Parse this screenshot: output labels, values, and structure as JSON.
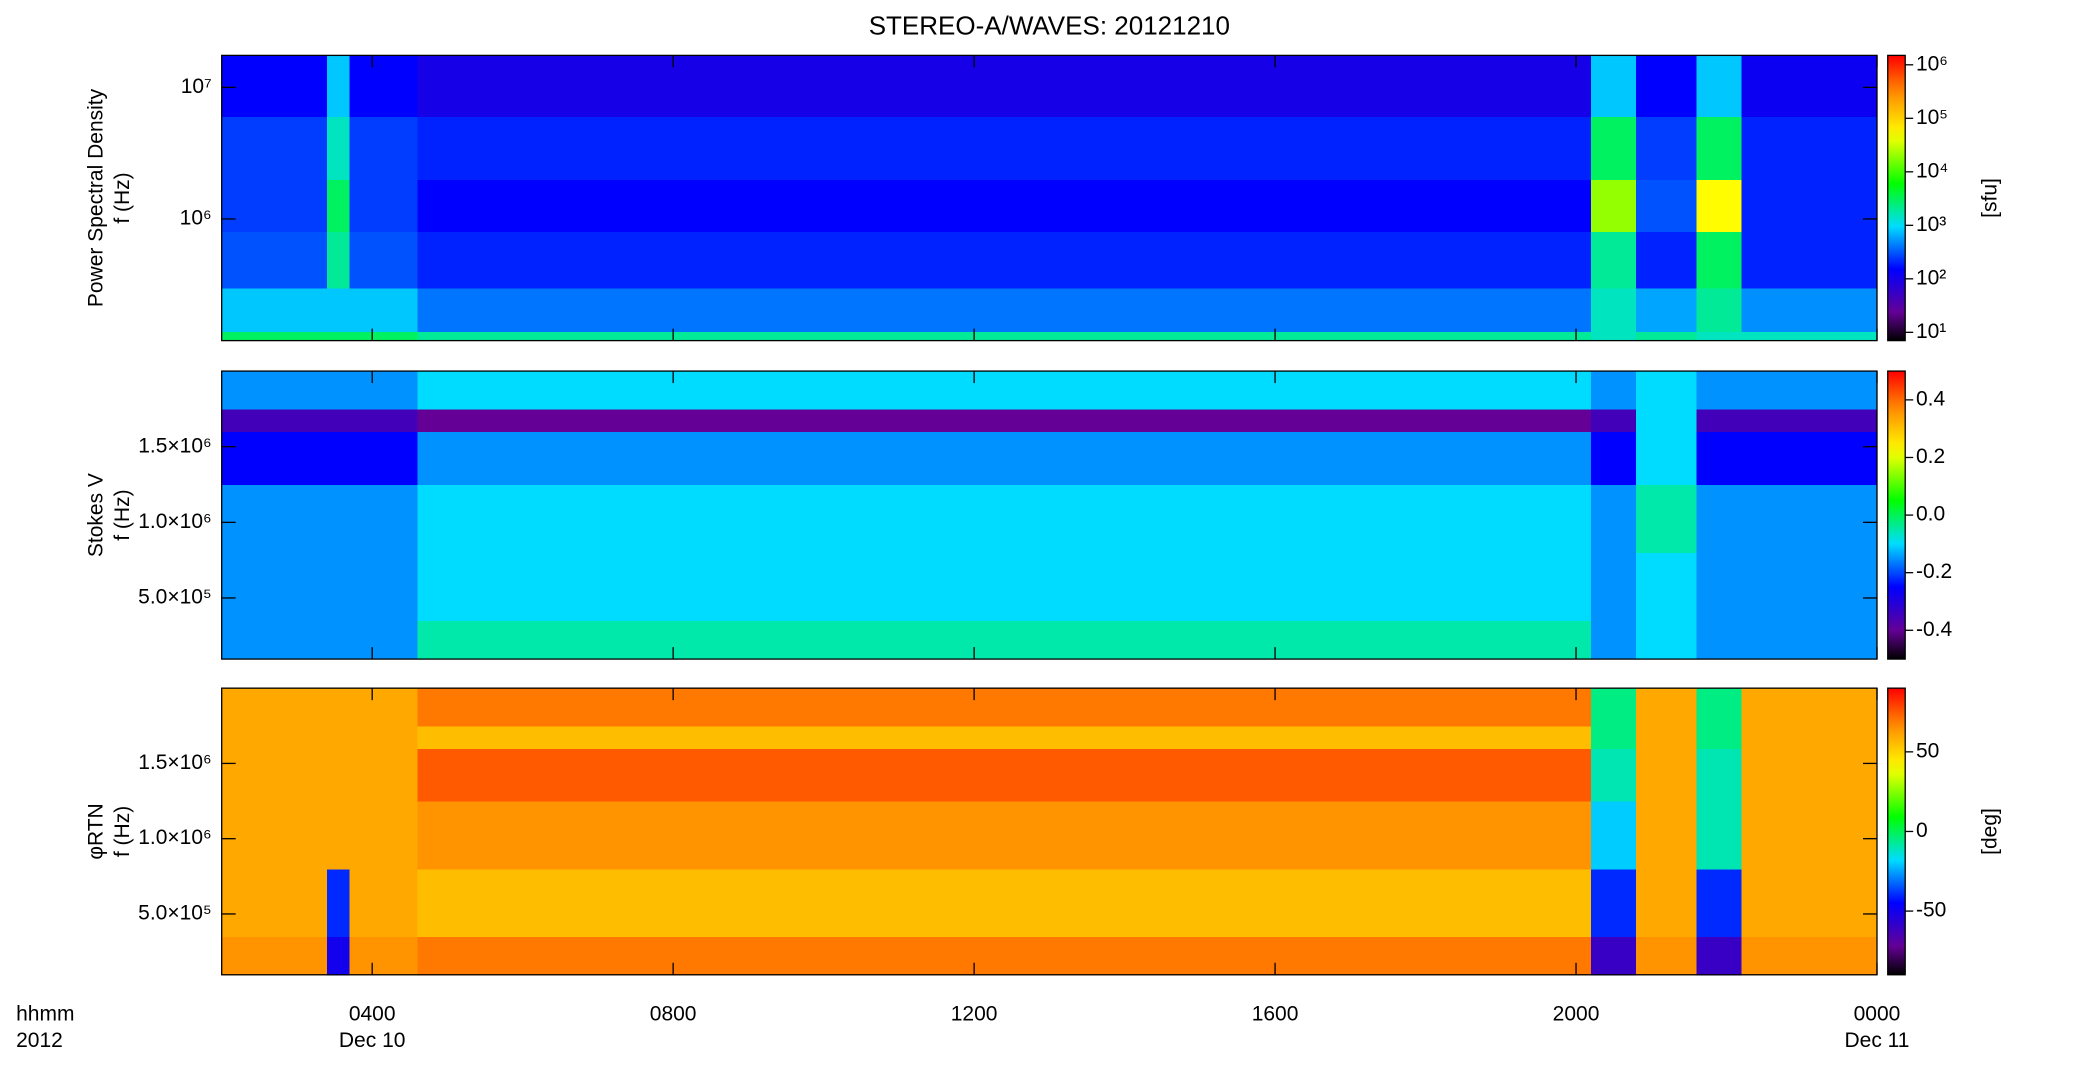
{
  "chart_data": [
    {
      "type": "heatmap",
      "title": "STEREO-A/WAVES: 20121210",
      "ylabel": [
        "Power Spectral Density",
        "f (Hz)"
      ],
      "yscale": "log",
      "ylim": [
        119000,
        17500000
      ],
      "yticks": [
        {
          "value": 1000000,
          "label": "10⁶"
        },
        {
          "value": 10000000,
          "label": "10⁷"
        }
      ],
      "colormap": "rainbow",
      "cscale": "log",
      "clim": [
        7,
        1500000
      ],
      "clabel": "[sfu]",
      "cticks": [
        {
          "value": 10,
          "label": "10¹"
        },
        {
          "value": 100,
          "label": "10²"
        },
        {
          "value": 1000,
          "label": "10³"
        },
        {
          "value": 10000,
          "label": "10⁴"
        },
        {
          "value": 100000,
          "label": "10⁵"
        },
        {
          "value": 1000000,
          "label": "10⁶"
        }
      ],
      "x_edges": [
        2,
        3.4,
        3.7,
        4.6,
        19,
        20.2,
        20.8,
        21.6,
        22.2,
        24
      ],
      "y_edges": [
        119000,
        140000,
        300000,
        800000,
        2000000,
        6000000,
        17500000
      ],
      "z": [
        [
          3000,
          3000,
          3000,
          2000,
          2000,
          1500,
          2000,
          1500,
          1500
        ],
        [
          800,
          800,
          800,
          400,
          400,
          1500,
          600,
          2000,
          500
        ],
        [
          300,
          2000,
          300,
          200,
          200,
          2000,
          200,
          3000,
          200
        ],
        [
          250,
          3000,
          250,
          150,
          150,
          20000,
          300,
          50000,
          200
        ],
        [
          250,
          1500,
          250,
          200,
          200,
          3000,
          250,
          3000,
          200
        ],
        [
          150,
          800,
          150,
          100,
          100,
          800,
          150,
          800,
          120
        ]
      ]
    },
    {
      "type": "heatmap",
      "ylabel": [
        "Stokes V",
        "f (Hz)"
      ],
      "yscale": "linear",
      "ylim": [
        96000,
        2000000
      ],
      "yticks": [
        {
          "value": 500000,
          "label": "5.0×10⁵"
        },
        {
          "value": 1000000,
          "label": "1.0×10⁶"
        },
        {
          "value": 1500000,
          "label": "1.5×10⁶"
        }
      ],
      "colormap": "rainbow",
      "cscale": "linear",
      "clim": [
        -0.5,
        0.5
      ],
      "cticks": [
        -0.4,
        -0.2,
        {
          "value": 0,
          "label": "0.0"
        },
        0.2,
        0.4
      ],
      "x_edges": [
        2,
        3.4,
        3.7,
        4.6,
        19,
        20.2,
        20.8,
        21.6,
        22.2,
        24
      ],
      "y_edges": [
        96000,
        350000,
        800000,
        1250000,
        1600000,
        1750000,
        2000000
      ],
      "z": [
        [
          -0.15,
          -0.15,
          -0.15,
          -0.05,
          -0.05,
          -0.15,
          -0.1,
          -0.15,
          -0.15
        ],
        [
          -0.15,
          -0.15,
          -0.15,
          -0.1,
          -0.1,
          -0.15,
          -0.1,
          -0.15,
          -0.15
        ],
        [
          -0.15,
          -0.15,
          -0.15,
          -0.1,
          -0.1,
          -0.15,
          -0.05,
          -0.15,
          -0.15
        ],
        [
          -0.25,
          -0.25,
          -0.25,
          -0.15,
          -0.15,
          -0.25,
          -0.1,
          -0.25,
          -0.25
        ],
        [
          -0.35,
          -0.35,
          -0.35,
          -0.4,
          -0.4,
          -0.35,
          -0.1,
          -0.35,
          -0.35
        ],
        [
          -0.15,
          -0.15,
          -0.15,
          -0.1,
          -0.1,
          -0.15,
          -0.1,
          -0.15,
          -0.15
        ]
      ]
    },
    {
      "type": "heatmap",
      "ylabel": [
        "φRTN",
        "f (Hz)"
      ],
      "yscale": "linear",
      "ylim": [
        96000,
        2000000
      ],
      "yticks": [
        {
          "value": 500000,
          "label": "5.0×10⁵"
        },
        {
          "value": 1000000,
          "label": "1.0×10⁶"
        },
        {
          "value": 1500000,
          "label": "1.5×10⁶"
        }
      ],
      "colormap": "rainbow",
      "cscale": "linear",
      "clim": [
        -90,
        90
      ],
      "clabel": "[deg]",
      "cticks": [
        -50,
        0,
        50
      ],
      "xlim": [
        2,
        24
      ],
      "xticks": [
        {
          "value": 4,
          "label": "0400"
        },
        {
          "value": 8,
          "label": "0800"
        },
        {
          "value": 12,
          "label": "1200"
        },
        {
          "value": 16,
          "label": "1600"
        },
        {
          "value": 20,
          "label": "2000"
        },
        {
          "value": 24,
          "label": "0000"
        }
      ],
      "x_date_labels": [
        {
          "value": 4,
          "label": "Dec 10"
        },
        {
          "value": 24,
          "label": "Dec 11"
        }
      ],
      "x_corner_labels": [
        "hhmm",
        "2012"
      ],
      "x_edges": [
        2,
        3.4,
        3.7,
        4.6,
        19,
        20.2,
        20.8,
        21.6,
        22.2,
        24
      ],
      "y_edges": [
        96000,
        350000,
        800000,
        1250000,
        1600000,
        1750000,
        2000000
      ],
      "z": [
        [
          65,
          -50,
          65,
          70,
          70,
          -60,
          65,
          -60,
          65
        ],
        [
          60,
          -40,
          60,
          55,
          55,
          -40,
          60,
          -40,
          60
        ],
        [
          60,
          60,
          60,
          65,
          65,
          -20,
          60,
          -10,
          60
        ],
        [
          60,
          60,
          60,
          75,
          75,
          -10,
          60,
          -10,
          60
        ],
        [
          60,
          60,
          60,
          55,
          55,
          -5,
          60,
          -5,
          60
        ],
        [
          60,
          60,
          60,
          70,
          70,
          -5,
          60,
          -5,
          60
        ]
      ]
    }
  ]
}
